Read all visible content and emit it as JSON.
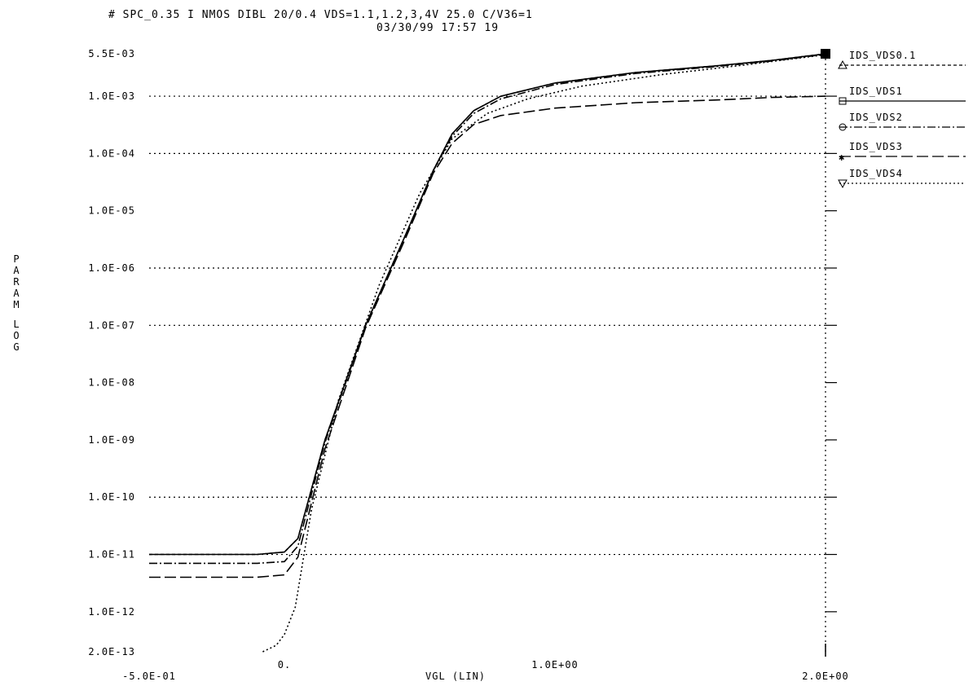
{
  "header": {
    "line1": "# SPC_0.35   I NMOS DIBL 20/0.4 VDS=1.1,1.2,3,4V   25.0 C/V36=1",
    "line2": "03/30/99 17:57 19"
  },
  "chart_data": {
    "type": "line",
    "title": "# SPC_0.35   I NMOS DIBL 20/0.4 VDS=1.1,1.2,3,4V   25.0 C/V36=1",
    "subtitle": "03/30/99 17:57 19",
    "xlabel": "VGL  (LIN)",
    "ylabel": "PARAM LOG",
    "x_scale": "linear",
    "y_scale": "log",
    "xlim": [
      -0.5,
      2.0
    ],
    "ylim": [
      2e-13,
      0.0055
    ],
    "x_ticks": [
      {
        "value": -0.5,
        "label": "-5.0E-01"
      },
      {
        "value": 0,
        "label": "0."
      },
      {
        "value": 1.0,
        "label": "1.0E+00"
      },
      {
        "value": 2.0,
        "label": "2.0E+00"
      }
    ],
    "y_ticks": [
      {
        "value": 0.0055,
        "label": "5.5E-03"
      },
      {
        "value": 0.001,
        "label": "1.0E-03"
      },
      {
        "value": 0.0001,
        "label": "1.0E-04"
      },
      {
        "value": 1e-05,
        "label": "1.0E-05"
      },
      {
        "value": 1e-06,
        "label": "1.0E-06"
      },
      {
        "value": 1e-07,
        "label": "1.0E-07"
      },
      {
        "value": 1e-08,
        "label": "1.0E-08"
      },
      {
        "value": 1e-09,
        "label": "1.0E-09"
      },
      {
        "value": 1e-10,
        "label": "1.0E-10"
      },
      {
        "value": 1e-11,
        "label": "1.0E-11"
      },
      {
        "value": 1e-12,
        "label": "1.0E-12"
      },
      {
        "value": 2e-13,
        "label": "2.0E-13"
      }
    ],
    "grid_lines": [
      0.001,
      0.0001,
      1e-06,
      1e-07,
      1e-10,
      1e-11
    ],
    "series": [
      {
        "name": "IDS_VDS0.1",
        "dash": "4,3",
        "marker": "triangle",
        "x": [
          -0.5,
          -0.1,
          0,
          0.05,
          0.15,
          0.3,
          0.45,
          0.55,
          0.62,
          0.7,
          0.8,
          1.0,
          1.3,
          1.6,
          1.8,
          2.0
        ],
        "y": [
          1e-11,
          1e-11,
          1.1e-11,
          1.9e-11,
          1e-09,
          1e-07,
          4e-06,
          5e-05,
          0.00022,
          0.00056,
          0.001,
          0.0017,
          0.0026,
          0.0034,
          0.0042,
          0.0055
        ]
      },
      {
        "name": "IDS_VDS1",
        "dash": "",
        "marker": "square",
        "x": [
          -0.5,
          -0.1,
          0,
          0.05,
          0.15,
          0.3,
          0.45,
          0.55,
          0.62,
          0.7,
          0.8,
          1.0,
          1.3,
          1.6,
          1.8,
          2.0
        ],
        "y": [
          1e-11,
          1e-11,
          1.1e-11,
          1.9e-11,
          1e-09,
          1e-07,
          4e-06,
          5e-05,
          0.00022,
          0.00056,
          0.001,
          0.0017,
          0.0026,
          0.0034,
          0.0042,
          0.0055
        ]
      },
      {
        "name": "IDS_VDS2",
        "dash": "10,3,2,3",
        "marker": "circle",
        "x": [
          -0.5,
          -0.1,
          0,
          0.05,
          0.15,
          0.3,
          0.45,
          0.55,
          0.62,
          0.7,
          0.8,
          1.0,
          1.3,
          1.6,
          1.8,
          2.0
        ],
        "y": [
          7e-12,
          7e-12,
          7.5e-12,
          1.4e-11,
          9e-10,
          1e-07,
          4e-06,
          5e-05,
          0.0002,
          0.0005,
          0.0009,
          0.0016,
          0.0025,
          0.0033,
          0.0041,
          0.0054
        ]
      },
      {
        "name": "IDS_VDS3",
        "dash": "14,5",
        "marker": "star",
        "x": [
          -0.5,
          -0.1,
          0,
          0.05,
          0.15,
          0.3,
          0.45,
          0.55,
          0.62,
          0.7,
          0.8,
          1.0,
          1.3,
          1.6,
          1.8,
          2.0
        ],
        "y": [
          4e-12,
          4e-12,
          4.4e-12,
          9e-12,
          7e-10,
          9e-08,
          3.5e-06,
          4.5e-05,
          0.00015,
          0.00032,
          0.00046,
          0.00062,
          0.00077,
          0.00086,
          0.00095,
          0.001
        ]
      },
      {
        "name": "IDS_VDS4",
        "dash": "2,3",
        "marker": "inverted-triangle",
        "x": [
          -0.08,
          -0.03,
          0,
          0.04,
          0.1,
          0.2,
          0.35,
          0.5,
          0.62,
          0.75,
          0.9,
          1.1,
          1.4,
          1.7,
          2.0
        ],
        "y": [
          2e-13,
          2.6e-13,
          4e-13,
          1.2e-12,
          6e-11,
          5e-09,
          5e-07,
          2e-05,
          0.00018,
          0.0005,
          0.0009,
          0.0015,
          0.0024,
          0.0035,
          0.0053
        ]
      }
    ],
    "legend_position": "right, outside plot"
  }
}
